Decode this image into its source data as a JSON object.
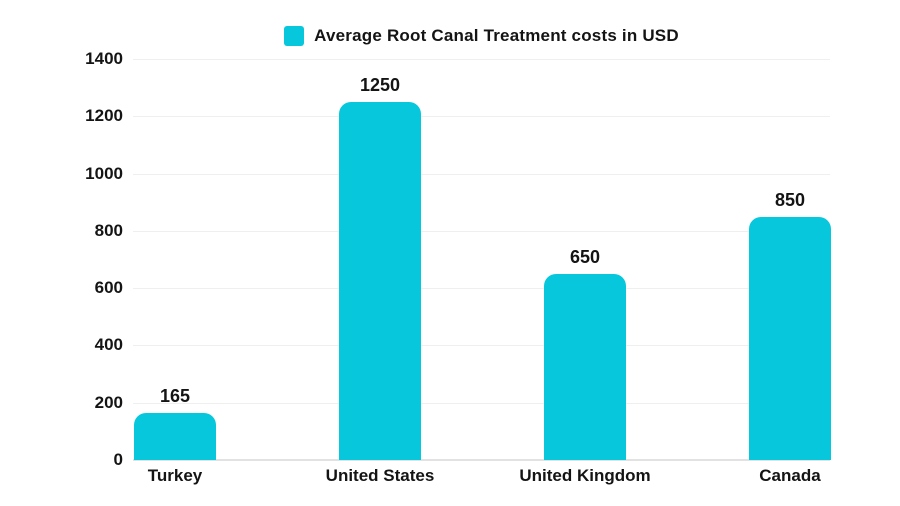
{
  "chart_data": {
    "type": "bar",
    "title": "Average Root Canal Treatment costs in USD",
    "legend": [
      {
        "label": "Average Root Canal Treatment costs in USD",
        "color": "#06C7DB"
      }
    ],
    "legend_position": "top-center",
    "categories": [
      "Turkey",
      "United States",
      "United Kingdom",
      "Canada"
    ],
    "values": [
      165,
      1250,
      650,
      850
    ],
    "xlabel": "",
    "ylabel": "",
    "ylim": [
      0,
      1400
    ],
    "yticks": [
      0,
      200,
      400,
      600,
      800,
      1000,
      1200,
      1400
    ],
    "grid": true,
    "bar_color": "#06C7DB"
  },
  "colors": {
    "bar": "#06C7DB",
    "text": "#141414",
    "gridline": "#efefef",
    "axis_line": "#e2e2e2",
    "background": "#ffffff"
  }
}
